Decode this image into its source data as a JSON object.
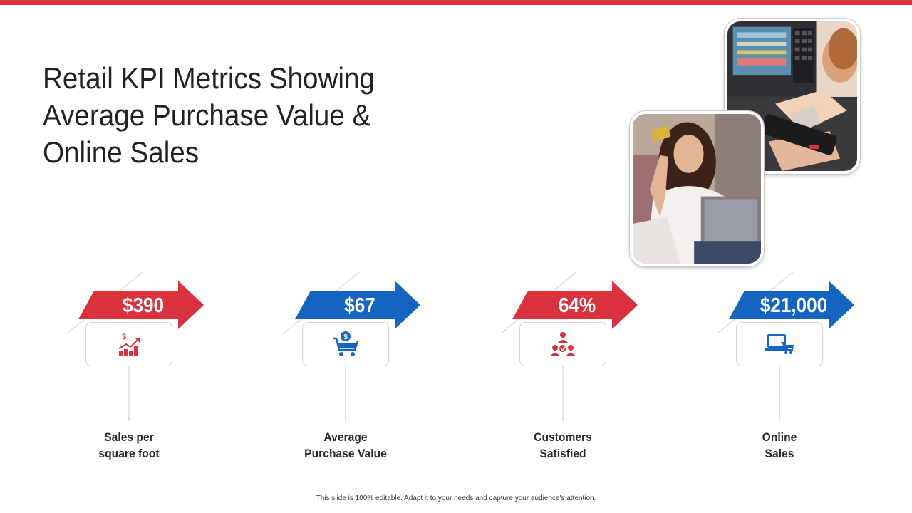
{
  "slide": {
    "title": "Retail KPI Metrics Showing Average Purchase Value & Online Sales",
    "footer": "This slide is 100% editable. Adapt it to your needs and capture your audience's attention.",
    "accent_color": "#d9323f"
  },
  "kpis": [
    {
      "value": "$390",
      "label": "Sales per\nsquare foot",
      "color": "#d9323f",
      "icon": "sales-growth-chart-icon"
    },
    {
      "value": "$67",
      "label": "Average\nPurchase Value",
      "color": "#1565c0",
      "icon": "shopping-cart-dollar-icon"
    },
    {
      "value": "64%",
      "label": "Customers\nSatisfied",
      "color": "#d9323f",
      "icon": "satisfied-customers-icon"
    },
    {
      "value": "$21,000",
      "label": "Online\nSales",
      "color": "#1565c0",
      "icon": "online-shopping-laptop-icon"
    }
  ],
  "images": [
    {
      "name": "card-payment-at-register-photo"
    },
    {
      "name": "woman-holding-credit-card-photo"
    }
  ]
}
